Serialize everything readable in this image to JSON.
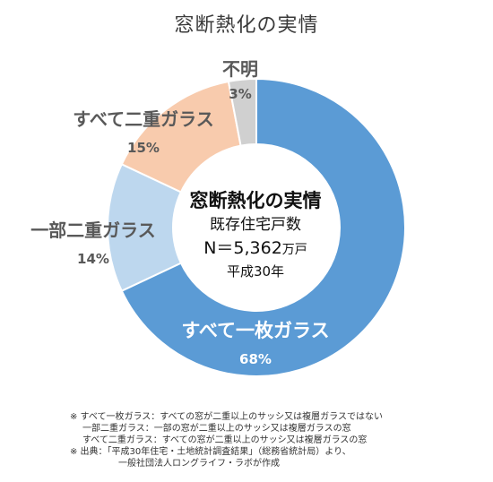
{
  "title": "窓断熱化の実情",
  "center": {
    "title": "窓断熱化の実情",
    "subtitle": "既存住宅戸数",
    "n_value": "N＝5,362",
    "n_unit": "万戸",
    "year": "平成30年"
  },
  "chart_data": {
    "type": "pie",
    "title": "窓断熱化の実情",
    "donut": true,
    "start_angle_deg": 0,
    "slices": [
      {
        "label": "すべて一枚ガラス",
        "value": 68,
        "display": "68%",
        "color": "#5B9BD5"
      },
      {
        "label": "一部二重ガラス",
        "value": 14,
        "display": "14%",
        "color": "#BDD7EE"
      },
      {
        "label": "すべて二重ガラス",
        "value": 15,
        "display": "15%",
        "color": "#F8CBAD"
      },
      {
        "label": "不明",
        "value": 3,
        "display": "3%",
        "color": "#D0D0D0"
      }
    ]
  },
  "notes": [
    "※ すべて一枚ガラス：すべての窓が二重以上のサッシ又は複層ガラスではない",
    "一部二重ガラス：一部の窓が二重以上のサッシ又は複層ガラスの窓",
    "すべて二重ガラス：すべての窓が二重以上のサッシ又は複層ガラスの窓",
    "※ 出典：「平成30年住宅・土地統計調査結果」（総務省統計局）より、",
    "一般社団法人ロングライフ・ラボが作成"
  ]
}
